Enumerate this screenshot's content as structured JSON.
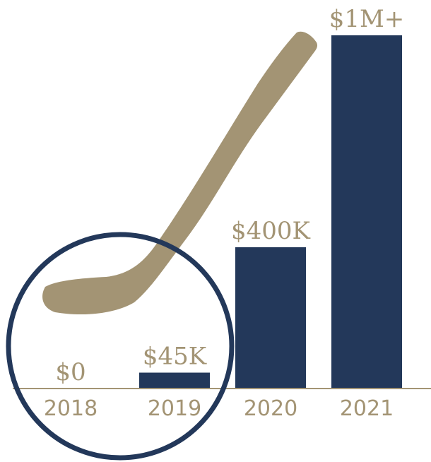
{
  "chart_data": {
    "type": "bar",
    "categories": [
      "2018",
      "2019",
      "2020",
      "2021"
    ],
    "values": [
      0,
      45000,
      400000,
      1000000
    ],
    "data_labels": [
      "$0",
      "$45K",
      "$400K",
      "$1M+"
    ],
    "title": "",
    "xlabel": "",
    "ylabel": "",
    "ylim": [
      0,
      1000000
    ],
    "grid": false,
    "legend": "none"
  },
  "colors": {
    "bar": "#23385a",
    "accent": "#a39474",
    "circle": "#23385a",
    "background": "#ffffff"
  },
  "decorations": {
    "stick_icon": "hockey-stick-icon",
    "highlight": "circle-outline"
  }
}
